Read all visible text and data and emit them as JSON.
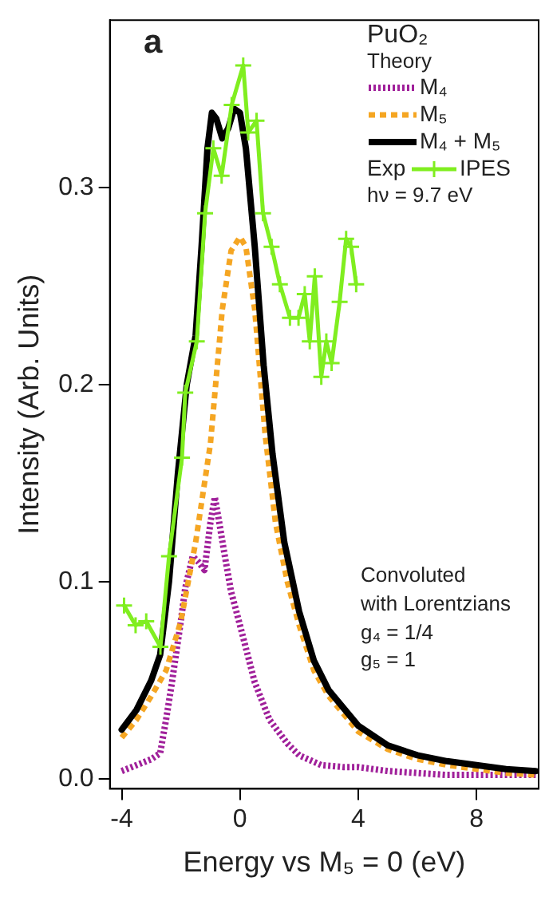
{
  "chart_data": {
    "type": "line",
    "xlabel": "Energy vs M₅ = 0 (eV)",
    "ylabel": "Intensity (Arb. Units)",
    "xlim": [
      -4.4,
      10.1
    ],
    "xticks": [
      -4,
      0,
      4,
      8
    ],
    "ylim": [
      -0.005,
      0.385
    ],
    "yticks": [
      {
        "value": 0,
        "label": "0.0"
      },
      0.1,
      0.2,
      0.3
    ],
    "legend": "top right",
    "annotations": [
      "a",
      "PuO₂",
      "Theory",
      "Exp",
      "hν = 9.7 eV",
      "Convoluted",
      "with Lorentzians",
      "g₄ = 1/4",
      "g₅ = 1"
    ],
    "series": [
      {
        "name": "M₄",
        "color": "#a0209a",
        "line_style": "dotted",
        "marker": "none",
        "x": [
          -4,
          -3.5,
          -3,
          -2.7,
          -2.5,
          -2.3,
          -2,
          -1.85,
          -1.6,
          -1.4,
          -1.2,
          -1,
          -0.85,
          -0.7,
          -0.5,
          -0.3,
          0,
          0.5,
          1,
          1.6,
          2,
          2.75,
          3.5,
          4,
          5,
          6,
          7,
          8,
          9,
          10
        ],
        "values": [
          0.004,
          0.007,
          0.01,
          0.013,
          0.03,
          0.049,
          0.08,
          0.097,
          0.113,
          0.11,
          0.106,
          0.13,
          0.143,
          0.13,
          0.112,
          0.095,
          0.078,
          0.049,
          0.03,
          0.018,
          0.012,
          0.007,
          0.006,
          0.006,
          0.004,
          0.003,
          0.002,
          0.002,
          0.002,
          0.002
        ]
      },
      {
        "name": "M₅",
        "color": "#f5a623",
        "line_style": "dashed",
        "marker": "none",
        "x": [
          -4,
          -3.5,
          -3,
          -2.5,
          -2,
          -1.5,
          -1,
          -0.6,
          -0.3,
          0,
          0.2,
          0.5,
          0.85,
          1.2,
          1.6,
          2,
          2.5,
          3,
          4,
          5,
          6,
          7,
          8,
          9,
          10
        ],
        "values": [
          0.021,
          0.03,
          0.042,
          0.055,
          0.08,
          0.12,
          0.17,
          0.238,
          0.268,
          0.275,
          0.27,
          0.238,
          0.175,
          0.13,
          0.1,
          0.078,
          0.055,
          0.042,
          0.024,
          0.015,
          0.01,
          0.007,
          0.005,
          0.003,
          0.002
        ]
      },
      {
        "name": "M₄ + M₅",
        "color": "#000000",
        "line_style": "solid",
        "marker": "none",
        "x": [
          -4,
          -3.5,
          -3,
          -2.7,
          -2.4,
          -2.1,
          -1.8,
          -1.5,
          -1.3,
          -1.1,
          -0.95,
          -0.8,
          -0.6,
          -0.4,
          -0.2,
          0,
          0.2,
          0.5,
          0.8,
          1.1,
          1.5,
          2,
          2.5,
          3,
          4,
          5,
          6,
          7,
          8,
          9,
          10
        ],
        "values": [
          0.025,
          0.035,
          0.05,
          0.063,
          0.1,
          0.155,
          0.2,
          0.225,
          0.27,
          0.32,
          0.338,
          0.335,
          0.325,
          0.33,
          0.34,
          0.338,
          0.32,
          0.27,
          0.21,
          0.165,
          0.12,
          0.085,
          0.06,
          0.045,
          0.027,
          0.017,
          0.012,
          0.009,
          0.007,
          0.005,
          0.004
        ]
      },
      {
        "name": "IPES",
        "color": "#80ee20",
        "line_style": "solid",
        "marker": "cross",
        "x": [
          -3.92,
          -3.53,
          -3.17,
          -2.69,
          -2.4,
          -1.96,
          -1.85,
          -1.46,
          -1.18,
          -0.9,
          -0.62,
          -0.28,
          0.11,
          0.28,
          0.56,
          0.78,
          1.07,
          1.35,
          1.69,
          1.98,
          2.19,
          2.36,
          2.53,
          2.75,
          2.92,
          3.1,
          3.37,
          3.59,
          3.76,
          3.93
        ],
        "values": [
          0.088,
          0.078,
          0.08,
          0.067,
          0.113,
          0.163,
          0.196,
          0.222,
          0.287,
          0.32,
          0.306,
          0.342,
          0.362,
          0.328,
          0.334,
          0.287,
          0.27,
          0.251,
          0.234,
          0.234,
          0.246,
          0.222,
          0.255,
          0.204,
          0.222,
          0.211,
          0.242,
          0.274,
          0.27,
          0.251
        ]
      }
    ]
  }
}
